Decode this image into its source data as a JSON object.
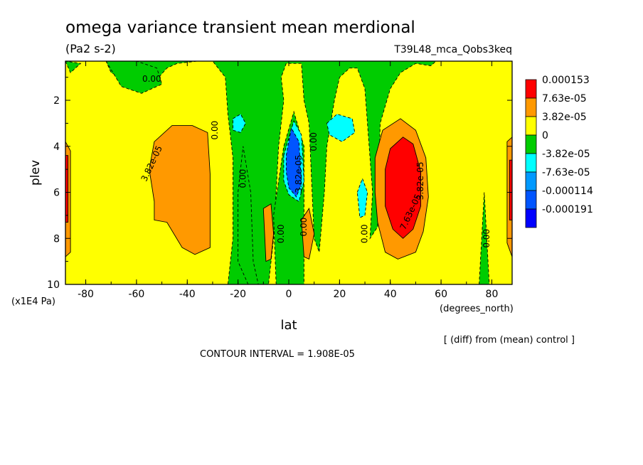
{
  "chart_data": {
    "type": "heatmap",
    "title": "omega variance transient mean merdional",
    "units": "(Pa2 s-2)",
    "run_label": "T39L48_mca_Qobs3keq",
    "xlabel": "lat",
    "x_units": "(degrees_north)",
    "ylabel": "plev",
    "y_units": "(x1E4 Pa)",
    "xlim": [
      -88,
      88
    ],
    "ylim": [
      10,
      0.3
    ],
    "x_ticks": [
      "-80",
      "-60",
      "-40",
      "-20",
      "0",
      "20",
      "40",
      "60",
      "80"
    ],
    "x_tick_values": [
      -80,
      -60,
      -40,
      -20,
      0,
      20,
      40,
      60,
      80
    ],
    "y_ticks": [
      "2",
      "4",
      "6",
      "8",
      "10"
    ],
    "y_tick_values": [
      2,
      4,
      6,
      8,
      10
    ],
    "contour_interval": "CONTOUR INTERVAL = 1.908E-05",
    "footnote": "[ (diff) from (mean) control ]",
    "colorbar": {
      "labels": [
        "0.000153",
        "7.63e-05",
        "3.82e-05",
        "0",
        "-3.82e-05",
        "-7.63e-05",
        "-0.000114",
        "-0.000191"
      ],
      "colors": [
        "#ff0000",
        "#ff9900",
        "#ffff00",
        "#00cc00",
        "#00ffff",
        "#0099ff",
        "#0055ff",
        "#0000ff"
      ]
    },
    "contour_labels": [
      {
        "text": "0.00",
        "lat": -54,
        "p": 1.2,
        "rot": 0
      },
      {
        "text": "3.82e-05",
        "lat": -53,
        "p": 4.8,
        "rot": -65
      },
      {
        "text": "0.00",
        "lat": -28,
        "p": 3.3,
        "rot": -90
      },
      {
        "text": "0.00",
        "lat": -17,
        "p": 5.4,
        "rot": -90
      },
      {
        "text": "0.00",
        "lat": -2,
        "p": 7.8,
        "rot": -90
      },
      {
        "text": "3.82e-05",
        "lat": 5,
        "p": 5.2,
        "rot": -90
      },
      {
        "text": "0.00",
        "lat": 7,
        "p": 7.5,
        "rot": -90
      },
      {
        "text": "0.00",
        "lat": 11,
        "p": 3.8,
        "rot": -90
      },
      {
        "text": "0.00",
        "lat": 31,
        "p": 7.8,
        "rot": -90
      },
      {
        "text": "7.63e-05",
        "lat": 49,
        "p": 6.9,
        "rot": -65
      },
      {
        "text": "3.82e-05",
        "lat": 53,
        "p": 5.5,
        "rot": -90
      },
      {
        "text": "0.00",
        "lat": 79,
        "p": 8.0,
        "rot": -90
      }
    ],
    "regions": [
      {
        "level": 0,
        "points": [
          [
            -88,
            0.3
          ],
          [
            88,
            0.3
          ],
          [
            88,
            10
          ],
          [
            -88,
            10
          ]
        ]
      },
      {
        "level": -1,
        "points": [
          [
            -88,
            0.3
          ],
          [
            -72,
            0.3
          ],
          [
            -70,
            0.8
          ],
          [
            -62,
            1.2
          ],
          [
            -52,
            1.1
          ],
          [
            -48,
            0.6
          ],
          [
            -44,
            0.4
          ],
          [
            -36,
            0.3
          ],
          [
            -30,
            0.3
          ],
          [
            -25,
            1.0
          ],
          [
            -24,
            2.6
          ],
          [
            -22,
            4.5
          ],
          [
            -22,
            8
          ],
          [
            -24,
            10
          ],
          [
            -8,
            10
          ],
          [
            -6,
            8
          ],
          [
            -4,
            4
          ],
          [
            -2,
            2
          ],
          [
            -3,
            1
          ],
          [
            -1,
            0.4
          ],
          [
            5,
            0.4
          ],
          [
            6,
            2
          ],
          [
            8,
            3
          ],
          [
            10,
            8
          ],
          [
            12,
            8.6
          ],
          [
            14,
            6
          ],
          [
            15,
            4
          ],
          [
            18,
            2
          ],
          [
            20,
            1
          ],
          [
            24,
            0.6
          ],
          [
            27,
            0.6
          ],
          [
            30,
            1.5
          ],
          [
            31,
            3
          ],
          [
            33,
            6
          ],
          [
            32,
            8
          ],
          [
            35,
            7.5
          ],
          [
            36,
            3
          ],
          [
            40,
            1.5
          ],
          [
            44,
            0.8
          ],
          [
            50,
            0.4
          ],
          [
            56,
            0.5
          ],
          [
            58,
            0.3
          ],
          [
            -88,
            0.3
          ]
        ]
      },
      {
        "level": -1,
        "points": [
          [
            -72,
            0.3
          ],
          [
            -66,
            1.4
          ],
          [
            -58,
            1.7
          ],
          [
            -50,
            1.3
          ],
          [
            -52,
            0.6
          ],
          [
            -60,
            0.3
          ]
        ]
      },
      {
        "level": -1,
        "points": [
          [
            -88,
            0.3
          ],
          [
            -86,
            0.8
          ],
          [
            -82,
            0.4
          ]
        ]
      },
      {
        "level": -1,
        "points": [
          [
            -16,
            10
          ],
          [
            -20,
            9
          ],
          [
            -20,
            6
          ],
          [
            -18,
            4
          ],
          [
            -15,
            6
          ],
          [
            -14,
            9
          ],
          [
            -12,
            10
          ]
        ]
      },
      {
        "level": -1,
        "points": [
          [
            -5,
            10
          ],
          [
            -6,
            7
          ],
          [
            -2,
            4
          ],
          [
            2,
            2.5
          ],
          [
            6,
            4
          ],
          [
            6,
            7
          ],
          [
            6,
            10
          ]
        ]
      },
      {
        "level": -1,
        "points": [
          [
            75,
            10
          ],
          [
            76,
            8
          ],
          [
            77,
            6
          ],
          [
            78,
            8
          ],
          [
            79,
            10
          ]
        ]
      },
      {
        "level": 1,
        "points": [
          [
            -53,
            6.4
          ],
          [
            -55,
            5
          ],
          [
            -53,
            3.8
          ],
          [
            -46,
            3.1
          ],
          [
            -38,
            3.1
          ],
          [
            -32,
            3.4
          ],
          [
            -31,
            5.2
          ],
          [
            -31,
            8.4
          ],
          [
            -37,
            8.7
          ],
          [
            -42,
            8.4
          ],
          [
            -48,
            7.3
          ],
          [
            -53,
            7.2
          ]
        ]
      },
      {
        "level": 1,
        "points": [
          [
            -88,
            3.8
          ],
          [
            -86,
            4.2
          ],
          [
            -86,
            8.6
          ],
          [
            -88,
            8.8
          ]
        ]
      },
      {
        "level": 1,
        "points": [
          [
            -10,
            6.7
          ],
          [
            -7,
            6.5
          ],
          [
            -6,
            7.8
          ],
          [
            -7,
            8.9
          ],
          [
            -9,
            9
          ]
        ]
      },
      {
        "level": 1,
        "points": [
          [
            5,
            7.2
          ],
          [
            8,
            6.7
          ],
          [
            10,
            7.8
          ],
          [
            8,
            8.9
          ],
          [
            6,
            8.8
          ]
        ]
      },
      {
        "level": 1,
        "points": [
          [
            34,
            4.5
          ],
          [
            37,
            3.3
          ],
          [
            44,
            2.8
          ],
          [
            50,
            3.3
          ],
          [
            54,
            4.5
          ],
          [
            55,
            6.2
          ],
          [
            53,
            7.7
          ],
          [
            50,
            8.6
          ],
          [
            43,
            8.9
          ],
          [
            38,
            8.6
          ],
          [
            35,
            7.3
          ],
          [
            34,
            6
          ]
        ]
      },
      {
        "level": 1,
        "points": [
          [
            86,
            3.8
          ],
          [
            88,
            3.6
          ],
          [
            88,
            8.8
          ],
          [
            86,
            8.2
          ]
        ]
      },
      {
        "level": 2,
        "points": [
          [
            38,
            5
          ],
          [
            40,
            4.1
          ],
          [
            45,
            3.6
          ],
          [
            49,
            3.9
          ],
          [
            52,
            5.1
          ],
          [
            52,
            6.6
          ],
          [
            49,
            7.6
          ],
          [
            45,
            8
          ],
          [
            41,
            7.6
          ],
          [
            38,
            6.6
          ]
        ]
      },
      {
        "level": 2,
        "points": [
          [
            -88,
            4.4
          ],
          [
            -87,
            4.4
          ],
          [
            -87,
            7.3
          ],
          [
            -88,
            7.3
          ]
        ]
      },
      {
        "level": 2,
        "points": [
          [
            87,
            4.6
          ],
          [
            88,
            4.6
          ],
          [
            88,
            7.2
          ],
          [
            87,
            7.2
          ]
        ]
      },
      {
        "level": -2,
        "points": [
          [
            -22,
            2.8
          ],
          [
            -19,
            2.6
          ],
          [
            -17,
            3.0
          ],
          [
            -19,
            3.4
          ],
          [
            -22,
            3.3
          ]
        ]
      },
      {
        "level": -2,
        "points": [
          [
            15,
            3.0
          ],
          [
            19,
            2.6
          ],
          [
            25,
            2.8
          ],
          [
            26,
            3.4
          ],
          [
            21,
            3.8
          ],
          [
            16,
            3.5
          ]
        ]
      },
      {
        "level": -2,
        "points": [
          [
            -2,
            4.4
          ],
          [
            2,
            2.9
          ],
          [
            5,
            3.5
          ],
          [
            6,
            5.5
          ],
          [
            4,
            6.4
          ],
          [
            0,
            6.1
          ],
          [
            -2,
            5.5
          ]
        ]
      },
      {
        "level": -2,
        "points": [
          [
            27,
            6
          ],
          [
            29,
            5.4
          ],
          [
            31,
            6
          ],
          [
            30,
            7
          ],
          [
            28,
            7.1
          ]
        ]
      },
      {
        "level": -3,
        "points": [
          [
            -1,
            4.4
          ],
          [
            1,
            3.2
          ],
          [
            4,
            3.8
          ],
          [
            5,
            5.6
          ],
          [
            3,
            6.2
          ],
          [
            0,
            5.8
          ],
          [
            -1,
            5.1
          ]
        ]
      }
    ]
  }
}
